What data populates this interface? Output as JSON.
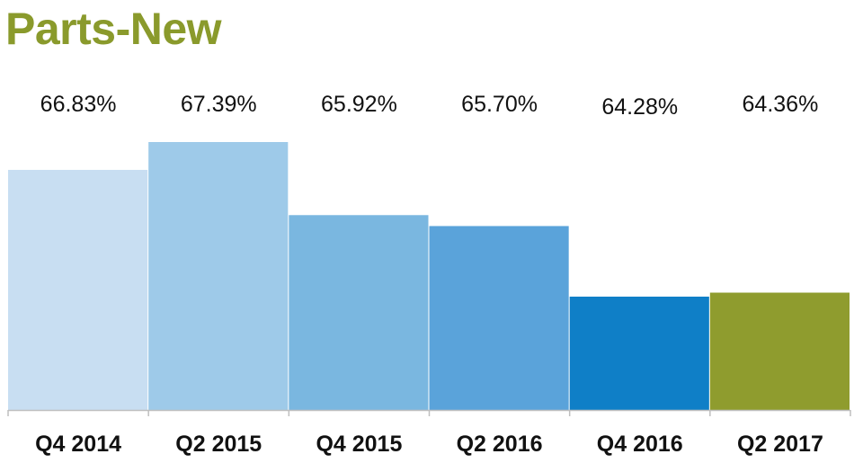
{
  "chart_data": {
    "type": "bar",
    "title": "Parts-New",
    "categories": [
      "Q4 2014",
      "Q2 2015",
      "Q4 2015",
      "Q2 2016",
      "Q4 2016",
      "Q2 2017"
    ],
    "values": [
      66.83,
      67.39,
      65.92,
      65.7,
      64.28,
      64.36
    ],
    "value_labels": [
      "66.83%",
      "67.39%",
      "65.92%",
      "65.70%",
      "64.28%",
      "64.36%"
    ],
    "unit": "%",
    "ylim": [
      62.0,
      67.39
    ],
    "grid": false,
    "legend": "none",
    "colors": {
      "title": "#8a9a2c",
      "bars": [
        "#c8def2",
        "#9ecae9",
        "#7ab7e0",
        "#5aa3da",
        "#0f7fc7",
        "#8f9c2e"
      ],
      "axis": "#bfbfbf"
    }
  }
}
